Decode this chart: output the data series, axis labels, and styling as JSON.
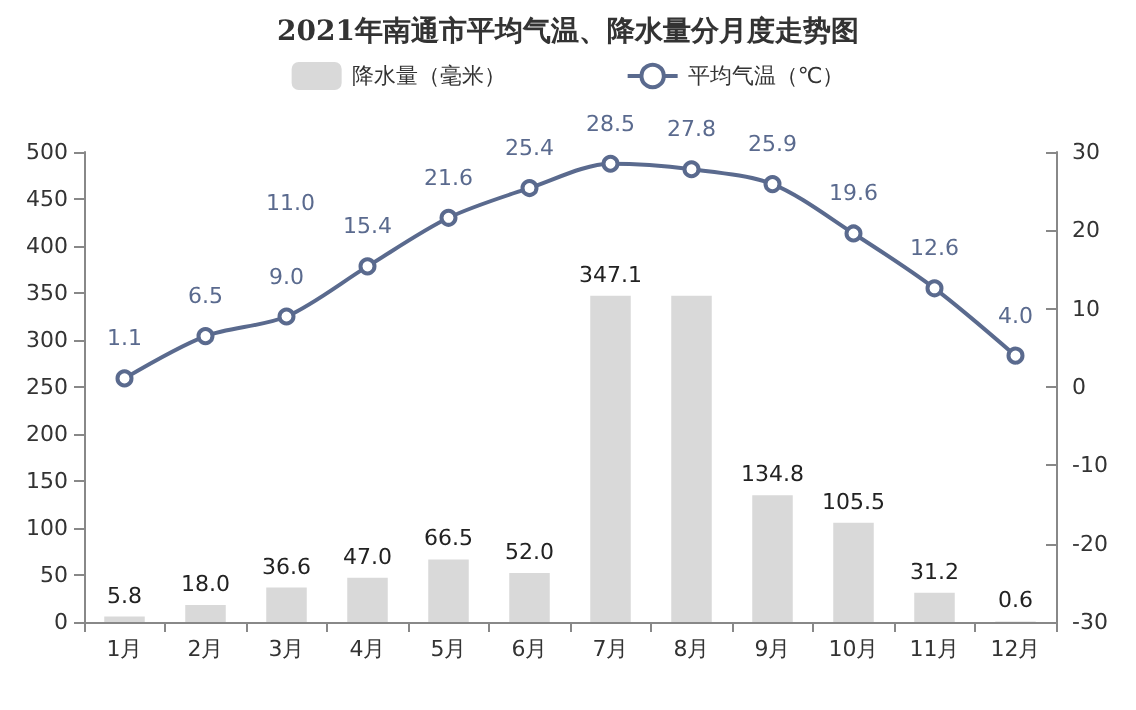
{
  "chart_data": {
    "type": "bar",
    "title": "2021年南通市平均气温、降水量分月度走势图",
    "categories": [
      "1月",
      "2月",
      "3月",
      "4月",
      "5月",
      "6月",
      "7月",
      "8月",
      "9月",
      "10月",
      "11月",
      "12月"
    ],
    "series": [
      {
        "name": "降水量（毫米）",
        "color": "#d9d9d9",
        "values": [
          5.8,
          18.0,
          36.6,
          47.0,
          66.5,
          52.0,
          347.1,
          347,
          134.8,
          105.5,
          31.2,
          0.6
        ],
        "value_labels": [
          "5.8",
          "18.0",
          "36.6",
          "47.0",
          "66.5",
          "52.0",
          "347.1",
          null,
          "134.8",
          "105.5",
          "31.2",
          "0.6"
        ]
      },
      {
        "name": "平均气温（℃）",
        "type": "line",
        "axis": "y2",
        "color": "#5a6a8e",
        "marker": "circle",
        "values": [
          1.1,
          6.5,
          9.0,
          15.4,
          21.6,
          25.4,
          28.5,
          27.8,
          25.9,
          19.6,
          12.6,
          4.0
        ],
        "value_labels": [
          "1.1",
          "6.5",
          "9.0",
          "15.4",
          "21.6",
          "25.4",
          "28.5",
          "27.8",
          "25.9",
          "19.6",
          "12.6",
          "4.0"
        ]
      }
    ],
    "annotations": [
      "11.0"
    ],
    "ylim": [
      0,
      500
    ],
    "yticks": [
      0,
      50,
      100,
      150,
      200,
      250,
      300,
      350,
      400,
      450,
      500
    ],
    "y2lim": [
      -30,
      30
    ],
    "y2ticks": [
      -30,
      -20,
      -10,
      0,
      10,
      20,
      30
    ],
    "grid": false,
    "legend": "top"
  }
}
